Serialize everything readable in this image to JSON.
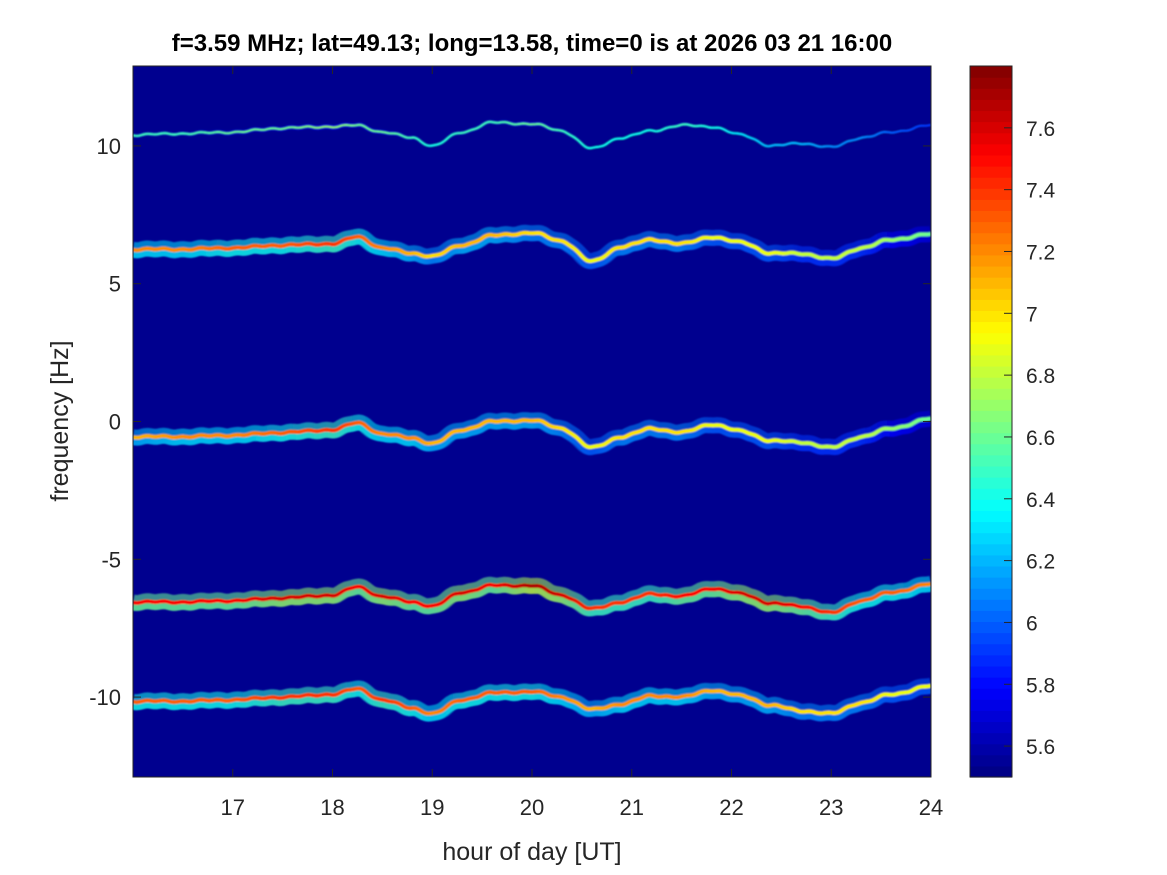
{
  "chart_data": {
    "type": "heatmap",
    "title": "f=3.59 MHz;  lat=49.13; long=13.58, time=0 is at 2026 03 21 16:00",
    "xlabel": "hour of day [UT]",
    "ylabel": "frequency [Hz]",
    "xlim": [
      16.0,
      24.0
    ],
    "ylim": [
      -12.9,
      12.9
    ],
    "x_ticks": [
      17,
      18,
      19,
      20,
      21,
      22,
      23,
      24
    ],
    "x_tick_labels": [
      "17",
      "18",
      "19",
      "20",
      "21",
      "22",
      "23",
      "24"
    ],
    "y_ticks": [
      10,
      5,
      0,
      -5,
      -10
    ],
    "y_tick_labels": [
      "10",
      "5",
      "0",
      "-5",
      "-10"
    ],
    "colorbar": {
      "colormap": "jet",
      "clim": [
        5.5,
        7.8
      ],
      "ticks": [
        5.6,
        5.8,
        6.0,
        6.2,
        6.4,
        6.6,
        6.8,
        7.0,
        7.2,
        7.4,
        7.6
      ],
      "tick_labels": [
        "5.6",
        "5.8",
        "6",
        "6.2",
        "6.4",
        "6.6",
        "6.8",
        "7",
        "7.2",
        "7.4",
        "7.6"
      ]
    },
    "background_level": 5.5,
    "x_trace_hours": [
      16.0,
      16.5,
      17.0,
      17.5,
      18.0,
      18.25,
      18.5,
      18.8,
      19.0,
      19.3,
      19.6,
      20.0,
      20.3,
      20.6,
      20.9,
      21.2,
      21.5,
      21.8,
      22.1,
      22.4,
      22.7,
      23.0,
      23.3,
      23.6,
      24.0
    ],
    "series": [
      {
        "y": [
          10.4,
          10.45,
          10.5,
          10.65,
          10.7,
          10.75,
          10.5,
          10.3,
          10.0,
          10.5,
          10.85,
          10.8,
          10.55,
          9.9,
          10.3,
          10.55,
          10.75,
          10.7,
          10.4,
          10.0,
          10.1,
          9.95,
          10.3,
          10.5,
          10.75
        ],
        "intensity": [
          6.5,
          6.5,
          6.6,
          6.6,
          6.7,
          6.6,
          6.6,
          6.5,
          6.4,
          6.5,
          6.5,
          6.6,
          6.5,
          6.4,
          6.4,
          6.4,
          6.5,
          6.4,
          6.3,
          6.2,
          6.2,
          6.1,
          6.1,
          6.0,
          5.9
        ]
      },
      {
        "y": [
          6.25,
          6.25,
          6.3,
          6.4,
          6.45,
          6.7,
          6.3,
          6.1,
          6.0,
          6.4,
          6.75,
          6.85,
          6.55,
          5.8,
          6.35,
          6.6,
          6.45,
          6.7,
          6.5,
          6.1,
          6.1,
          5.9,
          6.3,
          6.6,
          6.8
        ],
        "intensity": [
          7.2,
          7.2,
          7.3,
          7.3,
          7.4,
          7.3,
          7.2,
          7.1,
          7.0,
          7.1,
          7.1,
          7.0,
          7.0,
          6.9,
          7.0,
          7.0,
          7.0,
          6.9,
          6.9,
          6.9,
          6.8,
          6.8,
          6.8,
          6.7,
          6.6
        ]
      },
      {
        "y": [
          -0.55,
          -0.55,
          -0.5,
          -0.4,
          -0.3,
          -0.05,
          -0.45,
          -0.6,
          -0.8,
          -0.3,
          0.0,
          0.05,
          -0.25,
          -0.95,
          -0.55,
          -0.25,
          -0.4,
          -0.1,
          -0.35,
          -0.7,
          -0.75,
          -0.95,
          -0.55,
          -0.25,
          0.1
        ],
        "intensity": [
          7.1,
          7.2,
          7.2,
          7.3,
          7.4,
          7.3,
          7.2,
          7.2,
          7.1,
          7.1,
          7.1,
          7.1,
          7.0,
          6.9,
          7.0,
          7.0,
          7.0,
          6.9,
          6.9,
          6.9,
          6.8,
          6.8,
          6.8,
          6.7,
          6.6
        ]
      },
      {
        "y": [
          -6.55,
          -6.55,
          -6.5,
          -6.4,
          -6.3,
          -6.0,
          -6.35,
          -6.55,
          -6.7,
          -6.2,
          -5.95,
          -5.95,
          -6.3,
          -6.8,
          -6.55,
          -6.25,
          -6.35,
          -6.05,
          -6.25,
          -6.6,
          -6.7,
          -6.95,
          -6.5,
          -6.2,
          -5.9
        ],
        "intensity": [
          7.5,
          7.5,
          7.5,
          7.6,
          7.6,
          7.5,
          7.6,
          7.5,
          7.5,
          7.6,
          7.5,
          7.7,
          7.6,
          7.4,
          7.4,
          7.4,
          7.5,
          7.5,
          7.6,
          7.6,
          7.5,
          7.4,
          7.3,
          7.3,
          7.2
        ]
      },
      {
        "y": [
          -10.15,
          -10.15,
          -10.1,
          -10.0,
          -9.9,
          -9.7,
          -10.1,
          -10.4,
          -10.6,
          -10.1,
          -9.85,
          -9.8,
          -10.0,
          -10.45,
          -10.25,
          -9.95,
          -10.0,
          -9.75,
          -9.95,
          -10.3,
          -10.5,
          -10.6,
          -10.2,
          -9.9,
          -9.6
        ],
        "intensity": [
          7.3,
          7.3,
          7.3,
          7.4,
          7.4,
          7.3,
          7.4,
          7.3,
          7.2,
          7.3,
          7.3,
          7.3,
          7.2,
          7.1,
          7.2,
          7.2,
          7.2,
          7.1,
          7.1,
          7.1,
          7.0,
          7.0,
          7.0,
          6.9,
          6.9
        ]
      }
    ]
  }
}
